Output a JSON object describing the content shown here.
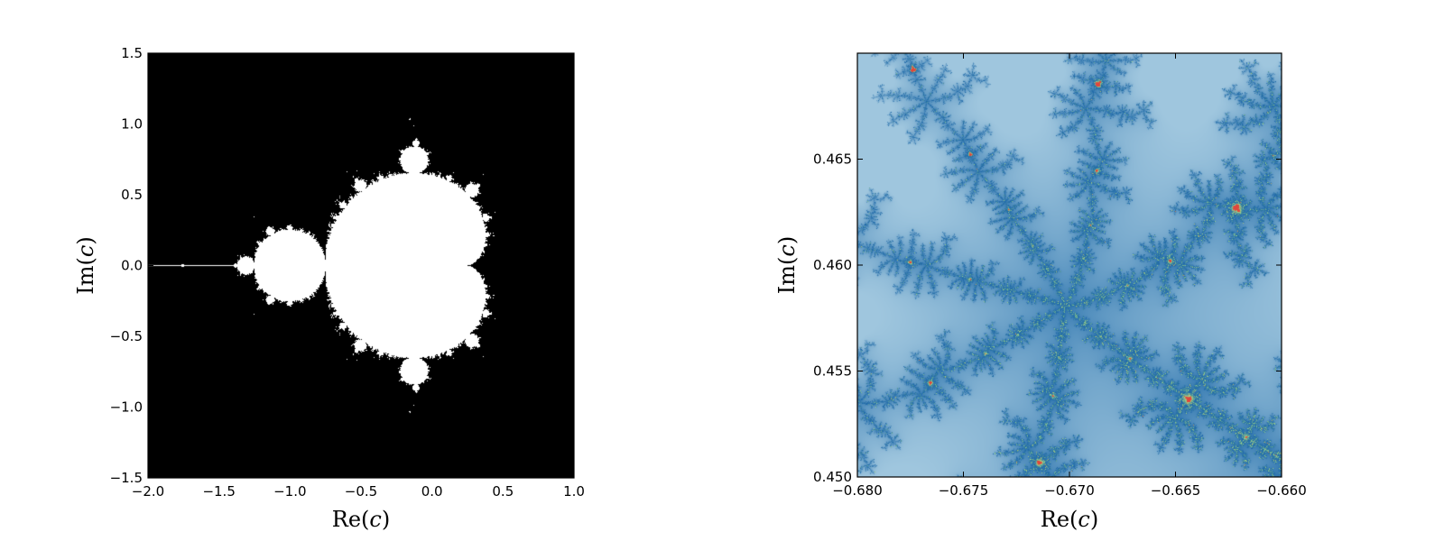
{
  "chart_data": [
    {
      "type": "heatmap",
      "title": "",
      "xlabel": {
        "prefix": "Re(",
        "var": "c",
        "suffix": ")"
      },
      "ylabel": {
        "prefix": "Im(",
        "var": "c",
        "suffix": ")"
      },
      "xlim": [
        -2.0,
        1.0
      ],
      "ylim": [
        -1.5,
        1.5
      ],
      "xticks": [
        -2.0,
        -1.5,
        -1.0,
        -0.5,
        0.0,
        0.5,
        1.0
      ],
      "xtick_labels": [
        "−2.0",
        "−1.5",
        "−1.0",
        "−0.5",
        "0.0",
        "0.5",
        "1.0"
      ],
      "yticks": [
        -1.5,
        -1.0,
        -0.5,
        0.0,
        0.5,
        1.0,
        1.5
      ],
      "ytick_labels": [
        "−1.5",
        "−1.0",
        "−0.5",
        "0.0",
        "0.5",
        "1.0",
        "1.5"
      ],
      "grid": false,
      "colormap": "binary",
      "colors": {
        "inside": "#ffffff",
        "outside": "#000000"
      }
    },
    {
      "type": "heatmap",
      "title": "",
      "xlabel": {
        "prefix": "Re(",
        "var": "c",
        "suffix": ")"
      },
      "ylabel": {
        "prefix": "Im(",
        "var": "c",
        "suffix": ")"
      },
      "xlim": [
        -0.68,
        -0.66
      ],
      "ylim": [
        0.45,
        0.47
      ],
      "xticks": [
        -0.68,
        -0.675,
        -0.67,
        -0.665,
        -0.66
      ],
      "xtick_labels": [
        "−0.680",
        "−0.675",
        "−0.670",
        "−0.665",
        "−0.660"
      ],
      "yticks": [
        0.45,
        0.455,
        0.46,
        0.465
      ],
      "ytick_labels": [
        "0.450",
        "0.455",
        "0.460",
        "0.465"
      ],
      "grid": false,
      "colormap": "blue-green-red",
      "colors": {
        "background_light": "#9fc6de",
        "background_dark": "#1f6aa8",
        "mid": "#9bd48a",
        "high": "#e0473c"
      }
    }
  ]
}
